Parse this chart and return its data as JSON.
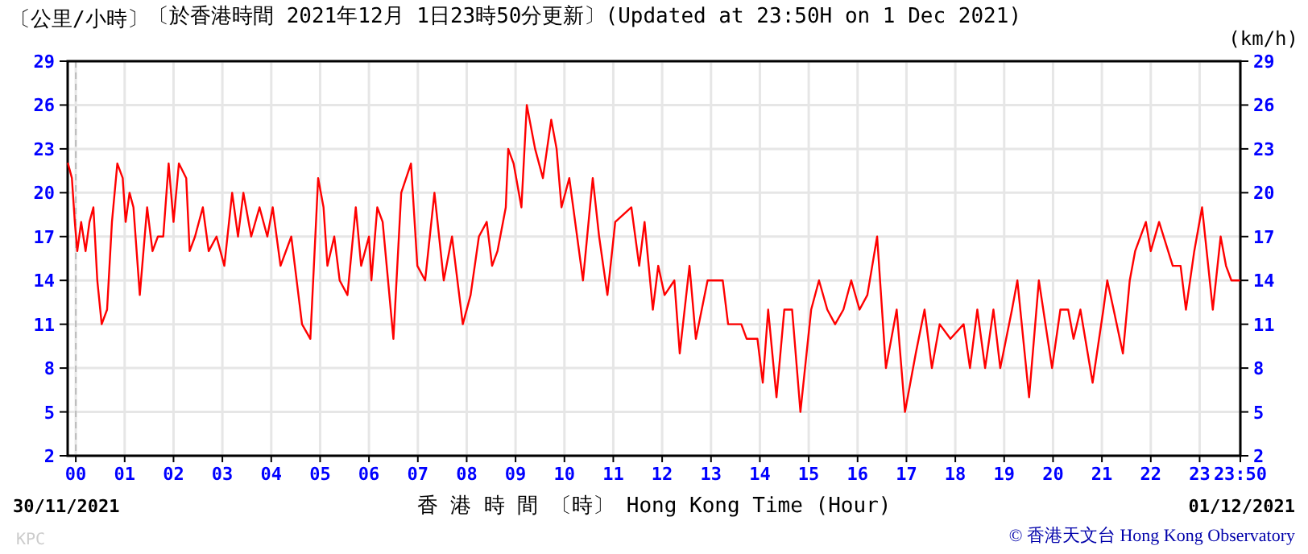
{
  "chart_data": {
    "type": "line",
    "title": "〔於香港時間 2021年12月 1日23時50分更新〕(Updated at 23:50H on 1 Dec 2021)",
    "ylabel": "〔公里/小時〕",
    "y2label": "(km/h)",
    "xlabel": "香 港 時 間 〔時〕 Hong Kong Time (Hour)",
    "annotations": [
      "30/11/2021",
      "01/12/2021",
      "KPC",
      "© 香港天文台 Hong Kong Observatory"
    ],
    "x": [
      -0.16,
      -0.08,
      -0.02,
      0.03,
      0.11,
      0.2,
      0.28,
      0.36,
      0.44,
      0.53,
      0.64,
      0.74,
      0.85,
      0.96,
      1.02,
      1.1,
      1.18,
      1.31,
      1.46,
      1.57,
      1.68,
      1.79,
      1.9,
      2.0,
      2.11,
      2.26,
      2.33,
      2.44,
      2.6,
      2.72,
      2.88,
      3.04,
      3.2,
      3.32,
      3.43,
      3.59,
      3.76,
      3.92,
      4.03,
      4.19,
      4.41,
      4.63,
      4.8,
      4.96,
      5.07,
      5.15,
      5.29,
      5.4,
      5.56,
      5.73,
      5.84,
      6.0,
      6.05,
      6.17,
      6.28,
      6.39,
      6.5,
      6.66,
      6.86,
      6.99,
      7.15,
      7.34,
      7.53,
      7.7,
      7.92,
      8.08,
      8.25,
      8.41,
      8.52,
      8.63,
      8.8,
      8.85,
      8.96,
      9.12,
      9.23,
      9.4,
      9.56,
      9.73,
      9.84,
      9.94,
      10.1,
      10.38,
      10.58,
      10.71,
      10.88,
      11.04,
      11.37,
      11.53,
      11.64,
      11.81,
      11.92,
      12.05,
      12.25,
      12.36,
      12.56,
      12.69,
      12.93,
      13.24,
      13.35,
      13.62,
      13.73,
      13.95,
      14.06,
      14.17,
      14.34,
      14.5,
      14.66,
      14.83,
      15.05,
      15.21,
      15.38,
      15.54,
      15.71,
      15.87,
      16.04,
      16.2,
      16.4,
      16.58,
      16.8,
      16.97,
      17.19,
      17.37,
      17.52,
      17.68,
      17.9,
      18.17,
      18.3,
      18.45,
      18.61,
      18.78,
      18.92,
      19.16,
      19.27,
      19.51,
      19.71,
      19.98,
      20.15,
      20.31,
      20.42,
      20.56,
      20.81,
      21.03,
      21.11,
      21.24,
      21.43,
      21.57,
      21.68,
      21.9,
      22.0,
      22.17,
      22.45,
      22.61,
      22.72,
      22.89,
      23.05,
      23.27,
      23.43,
      23.54,
      23.65,
      23.81
    ],
    "series": [
      {
        "color": "#ff0000",
        "values": [
          22,
          21,
          18,
          16,
          18,
          16,
          18,
          19,
          14,
          11,
          12,
          18,
          22,
          21,
          18,
          20,
          19,
          13,
          19,
          16,
          17,
          17,
          22,
          18,
          22,
          21,
          16,
          17,
          19,
          16,
          17,
          15,
          20,
          17,
          20,
          17,
          19,
          17,
          19,
          15,
          17,
          11,
          10,
          21,
          19,
          15,
          17,
          14,
          13,
          19,
          15,
          17,
          14,
          19,
          18,
          14,
          10,
          20,
          22,
          15,
          14,
          20,
          14,
          17,
          11,
          13,
          17,
          18,
          15,
          16,
          19,
          23,
          22,
          19,
          26,
          23,
          21,
          25,
          23,
          19,
          21,
          14,
          21,
          17,
          13,
          18,
          19,
          15,
          18,
          12,
          15,
          13,
          14,
          9,
          15,
          10,
          14,
          14,
          11,
          11,
          10,
          10,
          7,
          12,
          6,
          12,
          12,
          5,
          12,
          14,
          12,
          11,
          12,
          14,
          12,
          13,
          17,
          8,
          12,
          5,
          9,
          12,
          8,
          11,
          10,
          11,
          8,
          12,
          8,
          12,
          8,
          12,
          14,
          6,
          14,
          8,
          12,
          12,
          10,
          12,
          7,
          12,
          14,
          12,
          9,
          14,
          16,
          18,
          16,
          18,
          15,
          15,
          12,
          16,
          19,
          12,
          17,
          15,
          14,
          14
        ]
      }
    ],
    "xlim": [
      -0.1667,
      23.8333
    ],
    "xticks": [
      {
        "value": 0,
        "label": "00"
      },
      {
        "value": 1,
        "label": "01"
      },
      {
        "value": 2,
        "label": "02"
      },
      {
        "value": 3,
        "label": "03"
      },
      {
        "value": 4,
        "label": "04"
      },
      {
        "value": 5,
        "label": "05"
      },
      {
        "value": 6,
        "label": "06"
      },
      {
        "value": 7,
        "label": "07"
      },
      {
        "value": 8,
        "label": "08"
      },
      {
        "value": 9,
        "label": "09"
      },
      {
        "value": 10,
        "label": "10"
      },
      {
        "value": 11,
        "label": "11"
      },
      {
        "value": 12,
        "label": "12"
      },
      {
        "value": 13,
        "label": "13"
      },
      {
        "value": 14,
        "label": "14"
      },
      {
        "value": 15,
        "label": "15"
      },
      {
        "value": 16,
        "label": "16"
      },
      {
        "value": 17,
        "label": "17"
      },
      {
        "value": 18,
        "label": "18"
      },
      {
        "value": 19,
        "label": "19"
      },
      {
        "value": 20,
        "label": "20"
      },
      {
        "value": 21,
        "label": "21"
      },
      {
        "value": 22,
        "label": "22"
      },
      {
        "value": 23,
        "label": "23"
      },
      {
        "value": 23.8333,
        "label": "23:50"
      }
    ],
    "ylim": [
      2,
      29
    ],
    "yticks": [
      2,
      5,
      8,
      11,
      14,
      17,
      20,
      23,
      26,
      29
    ],
    "y2lim": [
      2,
      29
    ],
    "y2ticks": [
      2,
      5,
      8,
      11,
      14,
      17,
      20,
      23,
      26,
      29
    ],
    "ref_lines": [
      {
        "axis": "x",
        "value": 0,
        "color": "#bbbbbb",
        "line_style": "dashed"
      }
    ],
    "grid": true,
    "line_style": "solid"
  }
}
